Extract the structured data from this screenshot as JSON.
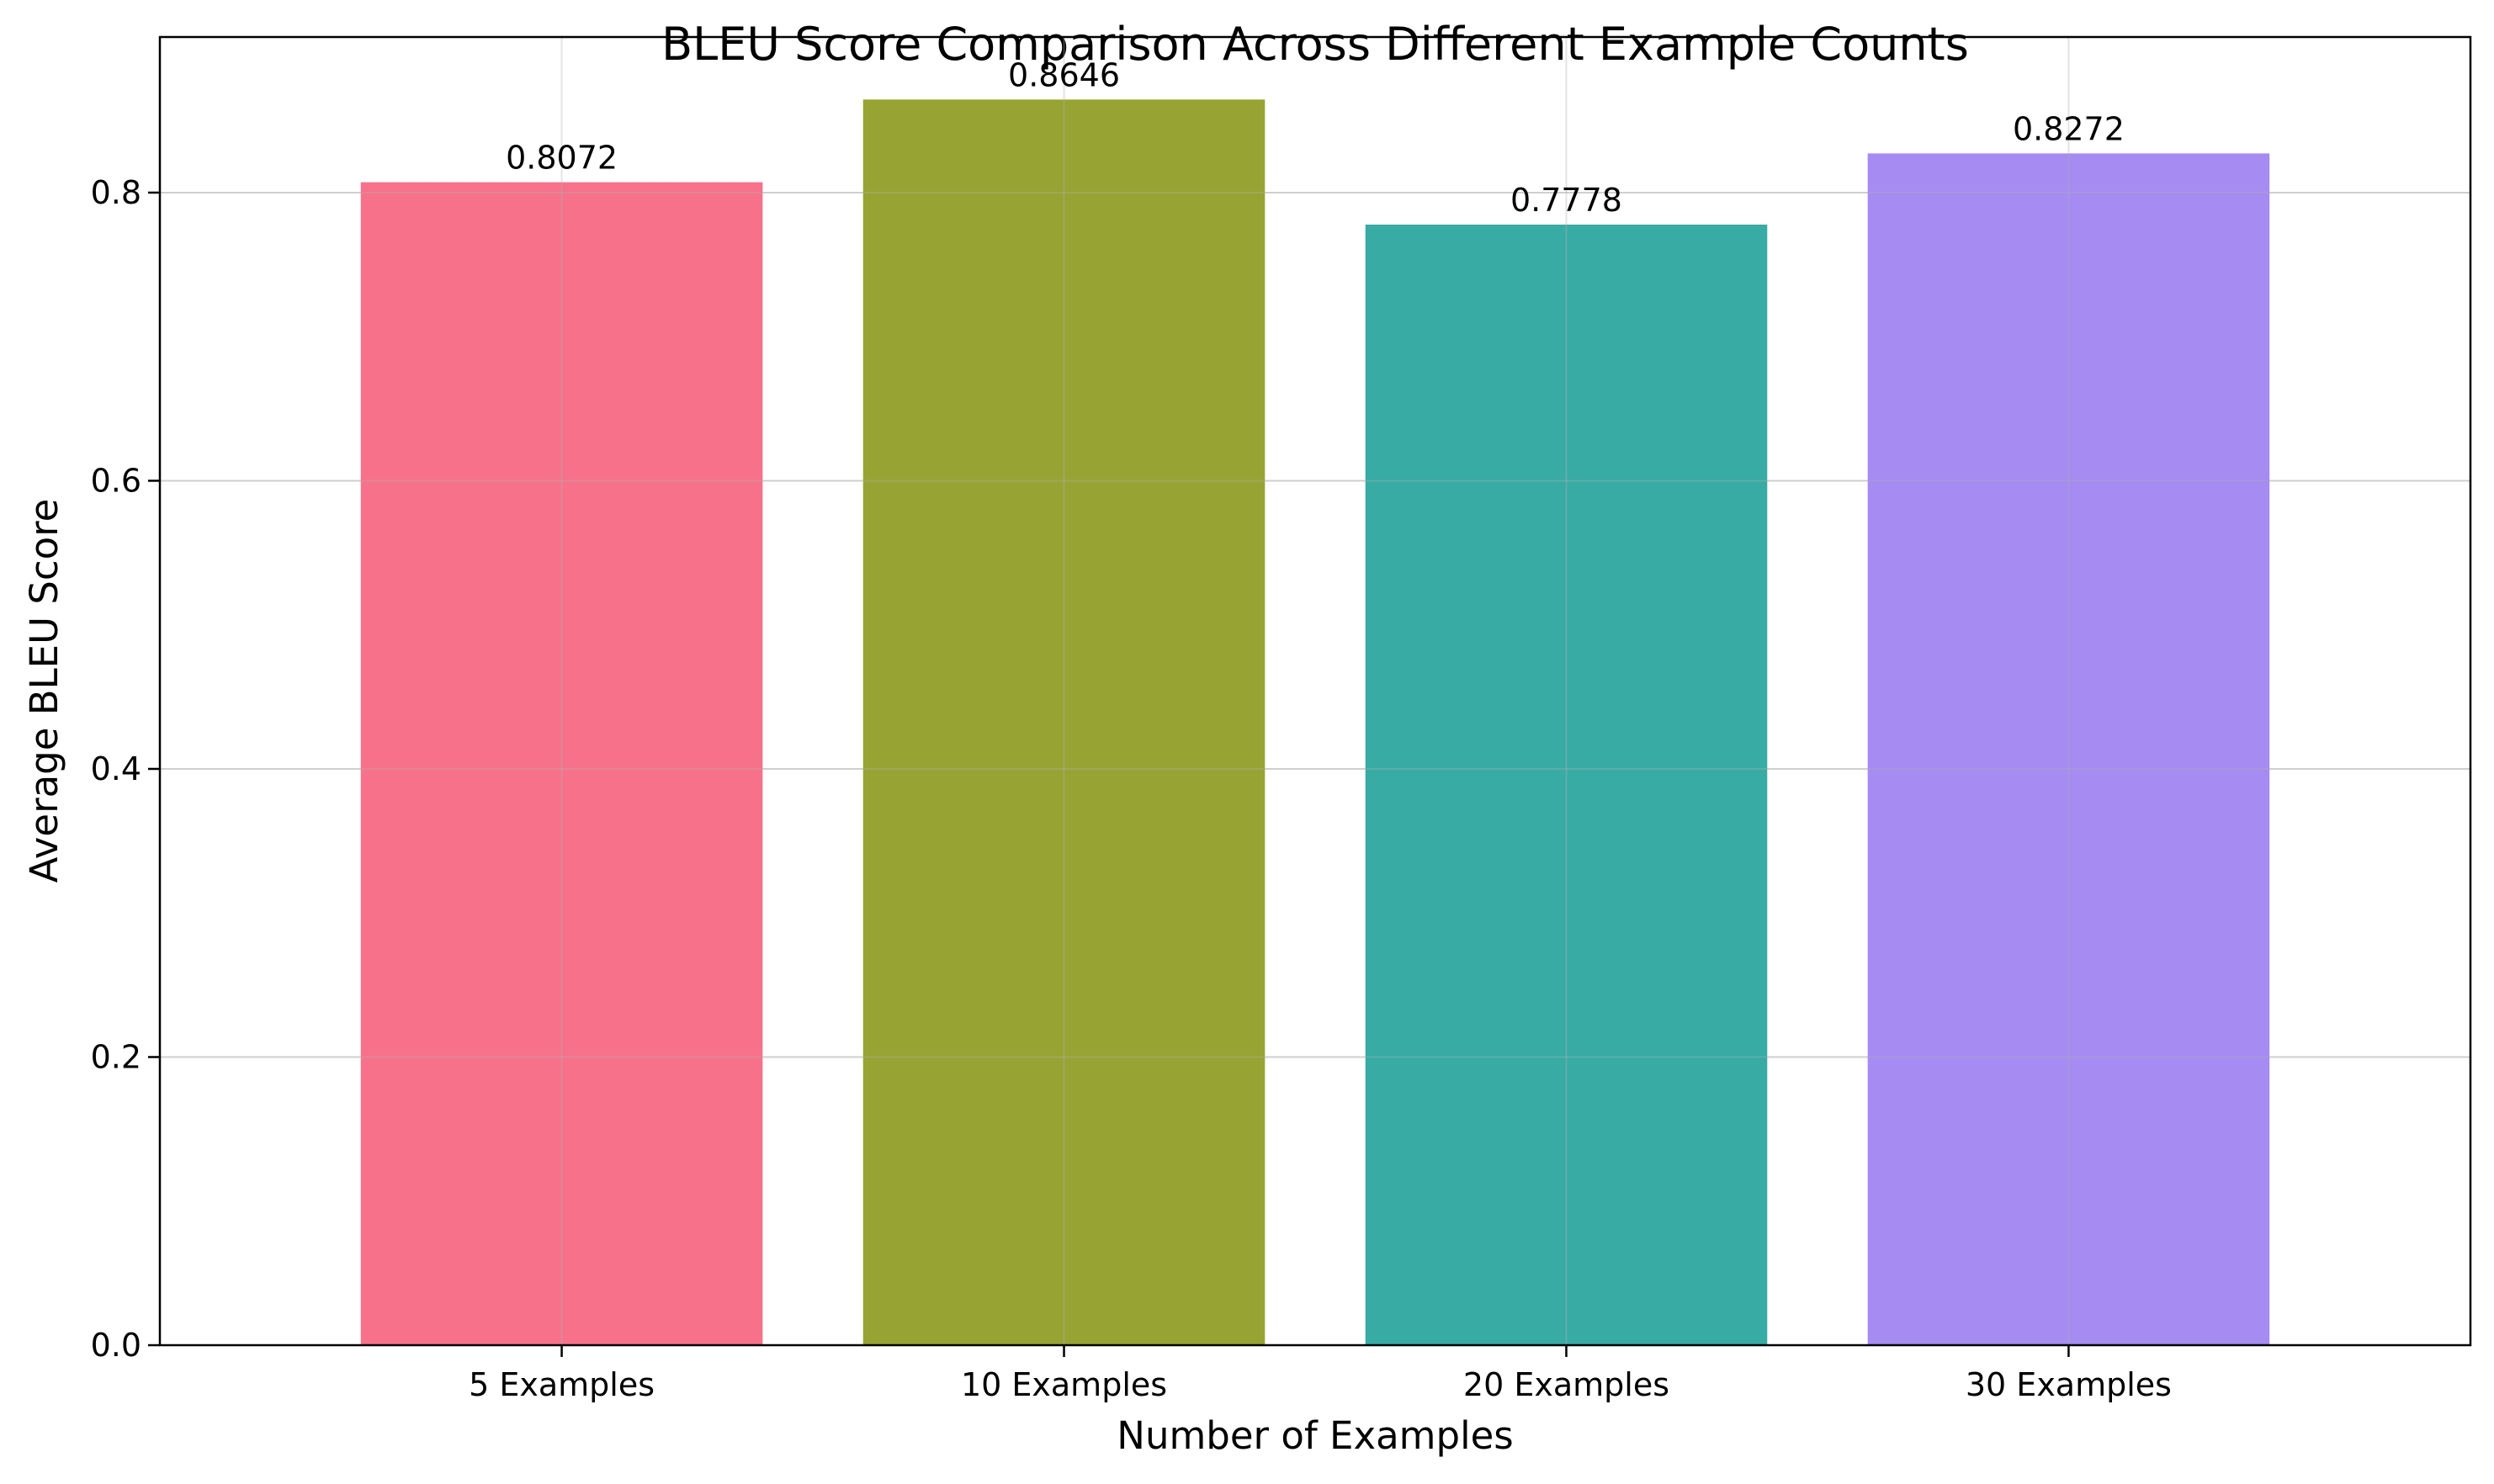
{
  "chart_data": {
    "type": "bar",
    "title": "BLEU Score Comparison Across Different Example Counts",
    "xlabel": "Number of Examples",
    "ylabel": "Average BLEU Score",
    "categories": [
      "5 Examples",
      "10 Examples",
      "20 Examples",
      "30 Examples"
    ],
    "values": [
      0.8072,
      0.8646,
      0.7778,
      0.8272
    ],
    "value_labels": [
      "0.8072",
      "0.8646",
      "0.7778",
      "0.8272"
    ],
    "colors": [
      "#f7718a",
      "#97a433",
      "#37aba4",
      "#a58bf2"
    ],
    "ylim": [
      0,
      0.908
    ],
    "yticks": [
      0.0,
      0.2,
      0.4,
      0.6,
      0.8
    ],
    "ytick_labels": [
      "0.0",
      "0.2",
      "0.4",
      "0.6",
      "0.8"
    ],
    "grid": true,
    "legend": "none"
  }
}
